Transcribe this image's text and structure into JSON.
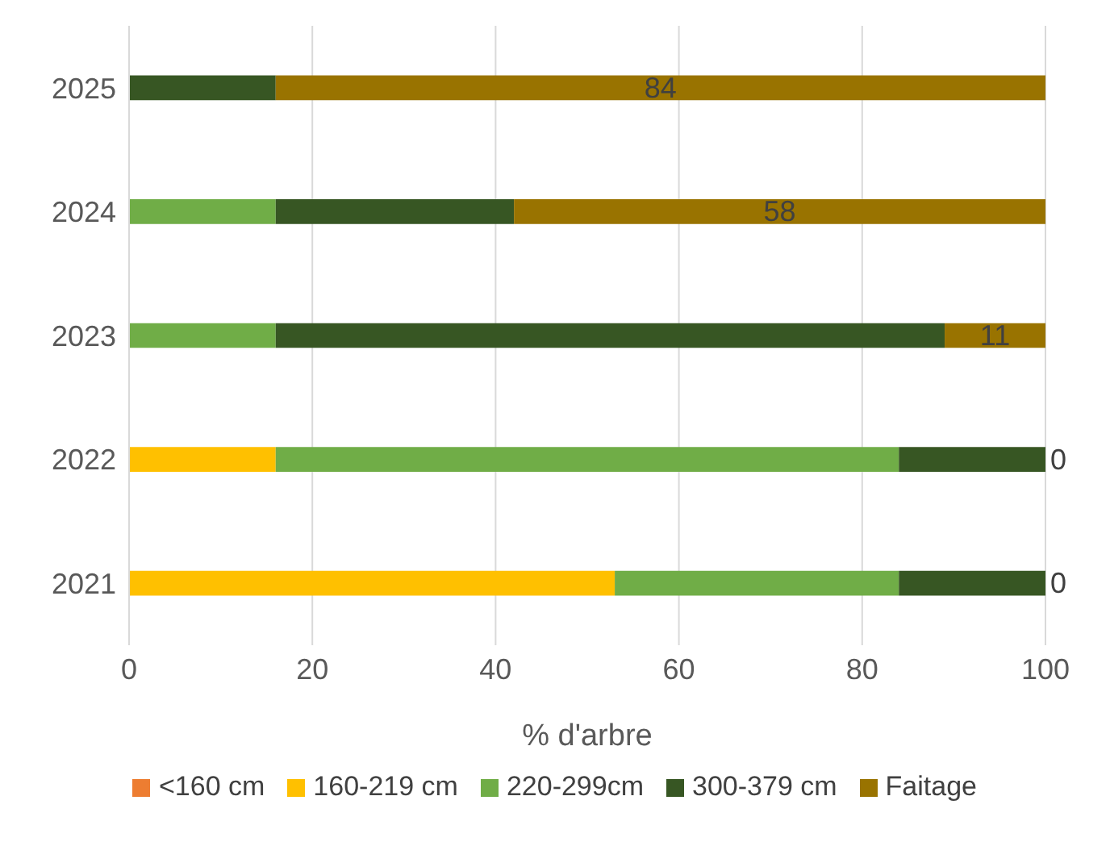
{
  "chart_data": {
    "type": "bar",
    "orientation": "horizontal",
    "stacked": true,
    "xlabel": "% d'arbre",
    "categories": [
      "2025",
      "2024",
      "2023",
      "2022",
      "2021"
    ],
    "series": [
      {
        "name": "<160 cm",
        "color": "#ed7d31",
        "values": [
          0,
          0,
          0,
          0,
          0
        ]
      },
      {
        "name": "160-219 cm",
        "color": "#ffc000",
        "values": [
          0,
          0,
          0,
          16,
          53
        ]
      },
      {
        "name": "220-299cm",
        "color": "#70ad47",
        "values": [
          0,
          16,
          16,
          68,
          31
        ]
      },
      {
        "name": "300-379 cm",
        "color": "#375623",
        "values": [
          16,
          26,
          73,
          16,
          16
        ]
      },
      {
        "name": "Faitage",
        "color": "#997300",
        "values": [
          84,
          58,
          11,
          0,
          0
        ],
        "value_labels": [
          "84",
          "58",
          "11",
          "0",
          "0"
        ]
      }
    ],
    "xlim": [
      0,
      100
    ],
    "xticks": [
      0,
      20,
      40,
      60,
      80,
      100
    ],
    "grid": "x",
    "legend": "bottom"
  }
}
